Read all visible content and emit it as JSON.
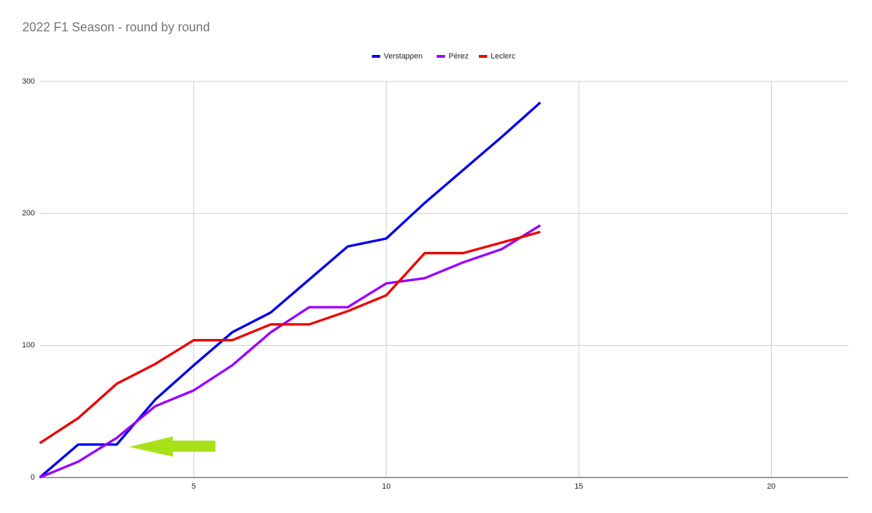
{
  "chart_data": {
    "type": "line",
    "title": "2022 F1 Season - round by round",
    "x": [
      1,
      2,
      3,
      4,
      5,
      6,
      7,
      8,
      9,
      10,
      11,
      12,
      13,
      14
    ],
    "series": [
      {
        "name": "Verstappen",
        "color": "#0000ee",
        "values": [
          0,
          25,
          25,
          59,
          85,
          110,
          125,
          150,
          175,
          181,
          208,
          233,
          258,
          284
        ]
      },
      {
        "name": "Pérez",
        "color": "#9900ff",
        "values": [
          0,
          12,
          30,
          54,
          66,
          85,
          110,
          129,
          129,
          147,
          151,
          163,
          173,
          191
        ]
      },
      {
        "name": "Leclerc",
        "color": "#ee0000",
        "values": [
          26,
          45,
          71,
          86,
          104,
          104,
          116,
          116,
          126,
          138,
          170,
          170,
          178,
          186
        ]
      }
    ],
    "xlim": [
      1,
      22
    ],
    "xticks": [
      5,
      10,
      15,
      20
    ],
    "ylim": [
      0,
      300
    ],
    "yticks": [
      0,
      100,
      200,
      300
    ],
    "grid": true,
    "legend": "top"
  }
}
